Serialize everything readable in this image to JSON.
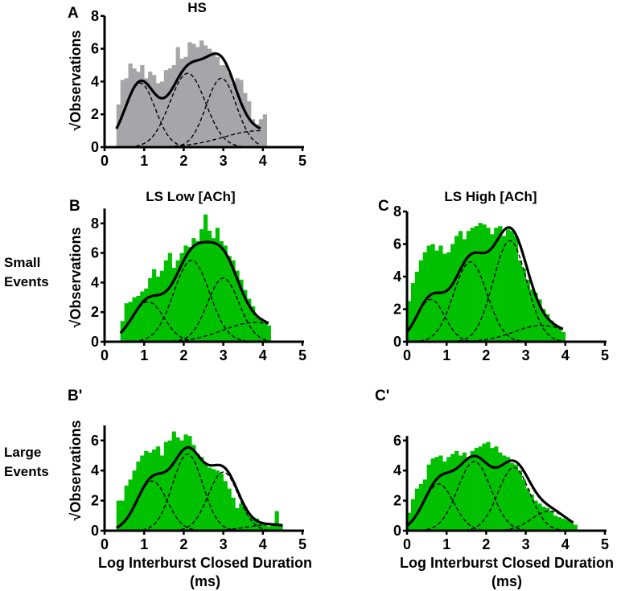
{
  "colors": {
    "hs_bar": "#a6a6a8",
    "ls_bar": "#00c000",
    "fit": "#000000"
  },
  "row_labels": {
    "small": [
      "Small",
      "Events"
    ],
    "large": [
      "Large",
      "Events"
    ]
  },
  "xlabel_lines": [
    "Log Interburst Closed Duration",
    "(ms)"
  ],
  "chart_data": [
    {
      "id": "A",
      "type": "bar",
      "panel_letter": "A",
      "title": "HS",
      "ylabel": "√Observations",
      "xlabel": "",
      "bar_color": "#a6a6a8",
      "xlim": [
        0,
        5
      ],
      "ylim": [
        0,
        8
      ],
      "xticks": [
        0,
        1,
        2,
        3,
        4,
        5
      ],
      "yticks": [
        0,
        2,
        4,
        6,
        8
      ],
      "bin_start": 0.3,
      "bin_width": 0.1,
      "bars": [
        2.6,
        4.1,
        4.2,
        5.1,
        4.8,
        4.6,
        5.0,
        4.2,
        4.6,
        4.4,
        3.9,
        4.0,
        4.7,
        4.8,
        5.0,
        6.1,
        5.4,
        5.5,
        6.4,
        6.3,
        6.1,
        6.5,
        6.2,
        6.0,
        5.8,
        5.5,
        5.0,
        5.0,
        4.5,
        3.9,
        4.2,
        4.1,
        3.3,
        2.8,
        1.7,
        1.4,
        1.7,
        2.0
      ],
      "fit_range": [
        0.3,
        3.95
      ],
      "components": [
        {
          "mean": 0.9,
          "amp": 3.9,
          "sd": 0.38
        },
        {
          "mean": 2.1,
          "amp": 4.5,
          "sd": 0.45
        },
        {
          "mean": 2.95,
          "amp": 4.2,
          "sd": 0.38
        },
        {
          "mean": 3.9,
          "amp": 1.0,
          "sd": 0.9
        }
      ]
    },
    {
      "id": "B",
      "type": "bar",
      "panel_letter": "B",
      "title": "LS Low [ACh]",
      "ylabel": "√Observations",
      "xlabel": "",
      "bar_color": "#00c000",
      "xlim": [
        0,
        5
      ],
      "ylim": [
        0,
        9
      ],
      "xticks": [
        0,
        1,
        2,
        3,
        4,
        5
      ],
      "yticks": [
        0,
        2,
        4,
        6,
        8
      ],
      "bin_start": 0.4,
      "bin_width": 0.1,
      "bars": [
        1.4,
        2.6,
        2.7,
        3.0,
        3.1,
        3.4,
        3.6,
        4.3,
        4.9,
        4.4,
        4.8,
        5.5,
        6.0,
        5.0,
        5.5,
        6.0,
        6.5,
        6.4,
        7.0,
        6.8,
        7.6,
        8.6,
        7.5,
        7.0,
        7.7,
        6.8,
        6.5,
        5.8,
        5.5,
        4.8,
        4.2,
        3.5,
        2.9,
        2.4,
        1.7,
        1.6,
        1.3,
        1.1
      ],
      "fit_range": [
        0.4,
        4.15
      ],
      "components": [
        {
          "mean": 1.1,
          "amp": 2.7,
          "sd": 0.4
        },
        {
          "mean": 2.2,
          "amp": 5.5,
          "sd": 0.45
        },
        {
          "mean": 3.0,
          "amp": 4.3,
          "sd": 0.4
        },
        {
          "mean": 3.8,
          "amp": 1.3,
          "sd": 0.8
        }
      ]
    },
    {
      "id": "C",
      "type": "bar",
      "panel_letter": "C",
      "title": "LS High [ACh]",
      "ylabel": "",
      "xlabel": "",
      "bar_color": "#00c000",
      "xlim": [
        0,
        5
      ],
      "ylim": [
        0,
        8
      ],
      "xticks": [
        0,
        1,
        2,
        3,
        4,
        5
      ],
      "yticks": [
        0,
        2,
        4,
        6,
        8
      ],
      "bin_start": 0.0,
      "bin_width": 0.1,
      "bars": [
        2.5,
        3.6,
        4.3,
        5.0,
        5.5,
        5.9,
        6.0,
        5.6,
        5.9,
        5.4,
        5.5,
        6.0,
        6.5,
        6.8,
        6.3,
        6.8,
        7.0,
        7.1,
        7.3,
        7.2,
        7.0,
        6.6,
        7.0,
        7.1,
        6.5,
        6.9,
        6.8,
        6.5,
        5.0,
        4.5,
        3.8,
        3.2,
        3.0,
        2.6,
        2.0,
        1.7,
        1.3,
        1.0,
        0.9,
        0.6
      ],
      "fit_range": [
        0.0,
        3.95
      ],
      "components": [
        {
          "mean": 0.6,
          "amp": 2.6,
          "sd": 0.35
        },
        {
          "mean": 1.6,
          "amp": 4.9,
          "sd": 0.42
        },
        {
          "mean": 2.6,
          "amp": 6.2,
          "sd": 0.42
        },
        {
          "mean": 3.4,
          "amp": 1.0,
          "sd": 0.7
        }
      ]
    },
    {
      "id": "B-prime",
      "type": "bar",
      "panel_letter": "B'",
      "title": "",
      "ylabel": "√Observations",
      "xlabel": "Log Interburst Closed Duration (ms)",
      "bar_color": "#00c000",
      "xlim": [
        0,
        5
      ],
      "ylim": [
        0,
        7
      ],
      "xticks": [
        0,
        1,
        2,
        3,
        4,
        5
      ],
      "yticks": [
        0,
        2,
        4,
        6
      ],
      "bin_start": 0.3,
      "bin_width": 0.1,
      "bars": [
        2.0,
        2.0,
        3.0,
        3.4,
        4.0,
        4.6,
        5.0,
        5.3,
        5.2,
        5.4,
        5.6,
        5.0,
        5.9,
        6.0,
        6.6,
        6.2,
        6.0,
        6.4,
        6.3,
        5.7,
        5.1,
        4.9,
        4.5,
        4.2,
        4.1,
        4.0,
        3.8,
        3.3,
        2.8,
        2.2,
        1.5,
        1.8,
        1.6,
        1.0,
        0.9,
        0.8,
        0.6,
        0.4,
        0.3,
        0.5,
        1.3,
        0.4
      ],
      "fit_range": [
        0.3,
        4.5
      ],
      "components": [
        {
          "mean": 1.2,
          "amp": 3.3,
          "sd": 0.38
        },
        {
          "mean": 2.1,
          "amp": 5.1,
          "sd": 0.38
        },
        {
          "mean": 3.0,
          "amp": 3.9,
          "sd": 0.38
        },
        {
          "mean": 4.2,
          "amp": 0.4,
          "sd": 0.6
        }
      ]
    },
    {
      "id": "C-prime",
      "type": "bar",
      "panel_letter": "C'",
      "title": "",
      "ylabel": "",
      "xlabel": "Log Interburst Closed Duration (ms)",
      "bar_color": "#00c000",
      "xlim": [
        0,
        5
      ],
      "ylim": [
        0,
        6.3
      ],
      "xticks": [
        0,
        1,
        2,
        3,
        4,
        5
      ],
      "yticks": [
        0,
        2,
        4,
        6
      ],
      "bin_start": 0.0,
      "bin_width": 0.1,
      "bars": [
        1.2,
        2.1,
        2.8,
        3.1,
        3.4,
        4.4,
        4.8,
        4.9,
        5.0,
        4.6,
        4.9,
        5.1,
        5.3,
        5.0,
        5.2,
        4.8,
        5.3,
        5.5,
        5.6,
        5.8,
        5.9,
        5.5,
        5.6,
        5.2,
        5.0,
        4.9,
        4.5,
        4.4,
        4.0,
        3.4,
        2.8,
        2.4,
        2.0,
        1.8,
        1.6,
        1.5,
        1.3,
        1.0,
        0.9,
        0.8,
        0.7,
        0.6,
        0.4
      ],
      "fit_range": [
        0.0,
        4.2
      ],
      "components": [
        {
          "mean": 0.8,
          "amp": 3.1,
          "sd": 0.38
        },
        {
          "mean": 1.7,
          "amp": 4.6,
          "sd": 0.42
        },
        {
          "mean": 2.7,
          "amp": 4.2,
          "sd": 0.4
        },
        {
          "mean": 3.6,
          "amp": 1.3,
          "sd": 0.45
        }
      ]
    }
  ]
}
